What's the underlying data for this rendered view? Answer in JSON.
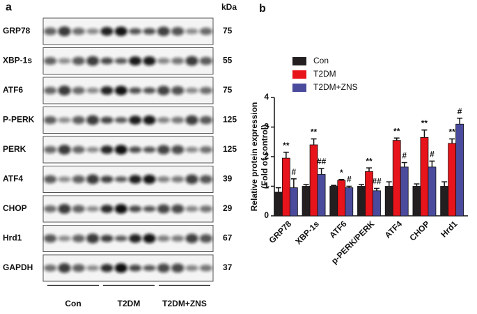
{
  "blot": {
    "panel_label": "a",
    "unit_label": "kDa",
    "rows": [
      {
        "label": "GRP78",
        "kda": 75
      },
      {
        "label": "XBP-1s",
        "kda": 55
      },
      {
        "label": "ATF6",
        "kda": 75
      },
      {
        "label": "P-PERK",
        "kda": 125
      },
      {
        "label": "PERK",
        "kda": 125
      },
      {
        "label": "ATF4",
        "kda": 39
      },
      {
        "label": "CHOP",
        "kda": 29
      },
      {
        "label": "Hrd1",
        "kda": 67
      },
      {
        "label": "GAPDH",
        "kda": 37
      }
    ],
    "groups": [
      "Con",
      "T2DM",
      "T2DM+ZNS"
    ]
  },
  "chart_data": {
    "type": "bar",
    "panel_label": "b",
    "y_label": "Relative protein expression",
    "y_label_2": "(Fold of control)",
    "categories": [
      "GRP78",
      "XBP-1s",
      "ATF6",
      "p-PERK/PERK",
      "ATF4",
      "CHOP",
      "Hrd1"
    ],
    "series": [
      {
        "name": "Con",
        "color": "#231f20",
        "values": [
          0.8,
          1.0,
          1.0,
          1.0,
          1.0,
          1.0,
          1.0
        ],
        "errors": [
          0.15,
          0.06,
          0.03,
          0.06,
          0.15,
          0.08,
          0.15
        ]
      },
      {
        "name": "T2DM",
        "color": "#e8141b",
        "values": [
          1.95,
          2.4,
          1.2,
          1.5,
          2.55,
          2.65,
          2.45
        ],
        "errors": [
          0.2,
          0.2,
          0.03,
          0.12,
          0.08,
          0.25,
          0.15
        ],
        "annotations": [
          "**",
          "**",
          "*",
          "**",
          "**",
          "**",
          "**"
        ]
      },
      {
        "name": "T2DM+ZNS",
        "color": "#4b4b9e",
        "values": [
          0.95,
          1.4,
          0.95,
          0.85,
          1.65,
          1.65,
          3.1
        ],
        "errors": [
          0.3,
          0.2,
          0.05,
          0.08,
          0.15,
          0.2,
          0.2
        ],
        "annotations": [
          "#",
          "##",
          "#",
          "##",
          "#",
          "#",
          "#"
        ]
      }
    ],
    "ylim": [
      0,
      4
    ],
    "yticks": [
      0,
      1,
      2,
      3,
      4
    ],
    "legend": "upper left"
  }
}
